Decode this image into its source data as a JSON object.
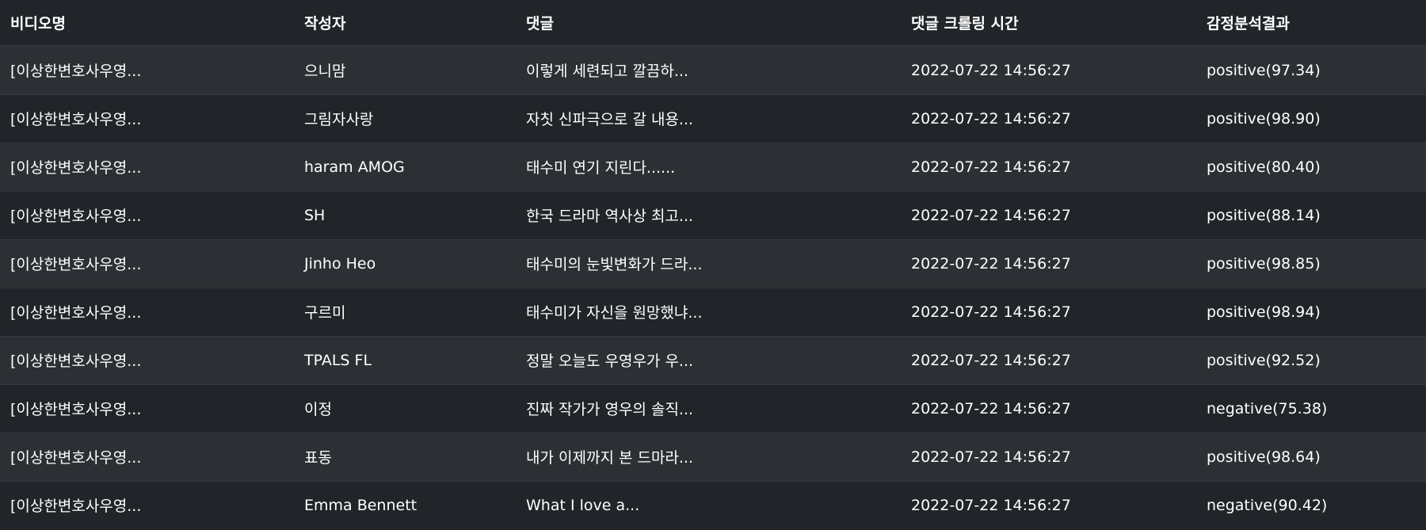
{
  "table": {
    "headers": [
      "비디오명",
      "작성자",
      "댓글",
      "댓글 크롤링 시간",
      "감정분석결과"
    ],
    "rows": [
      {
        "video": "[이상한변호사우영...",
        "author": "으니맘",
        "comment": "이렇게 세련되고 깔끔하...",
        "crawled_at": "2022-07-22 14:56:27",
        "sentiment": "positive(97.34)"
      },
      {
        "video": "[이상한변호사우영...",
        "author": "그림자사랑",
        "comment": "자칫 신파극으로 갈 내용...",
        "crawled_at": "2022-07-22 14:56:27",
        "sentiment": "positive(98.90)"
      },
      {
        "video": "[이상한변호사우영...",
        "author": "haram AMOG",
        "comment": "태수미 연기 지린다......",
        "crawled_at": "2022-07-22 14:56:27",
        "sentiment": "positive(80.40)"
      },
      {
        "video": "[이상한변호사우영...",
        "author": "SH",
        "comment": "한국 드라마 역사상 최고...",
        "crawled_at": "2022-07-22 14:56:27",
        "sentiment": "positive(88.14)"
      },
      {
        "video": "[이상한변호사우영...",
        "author": "Jinho Heo",
        "comment": "태수미의 눈빛변화가 드라...",
        "crawled_at": "2022-07-22 14:56:27",
        "sentiment": "positive(98.85)"
      },
      {
        "video": "[이상한변호사우영...",
        "author": "구르미",
        "comment": "태수미가 자신을 원망했냐...",
        "crawled_at": "2022-07-22 14:56:27",
        "sentiment": "positive(98.94)"
      },
      {
        "video": "[이상한변호사우영...",
        "author": "TPALS FL",
        "comment": "정말 오늘도 우영우가 우...",
        "crawled_at": "2022-07-22 14:56:27",
        "sentiment": "positive(92.52)"
      },
      {
        "video": "[이상한변호사우영...",
        "author": "이정",
        "comment": "진짜 작가가 영우의 솔직...",
        "crawled_at": "2022-07-22 14:56:27",
        "sentiment": "negative(75.38)"
      },
      {
        "video": "[이상한변호사우영...",
        "author": "표동",
        "comment": "내가 이제까지 본 드마라...",
        "crawled_at": "2022-07-22 14:56:27",
        "sentiment": "positive(98.64)"
      },
      {
        "video": "[이상한변호사우영...",
        "author": "Emma Bennett",
        "comment": "What I love a...",
        "crawled_at": "2022-07-22 14:56:27",
        "sentiment": "negative(90.42)"
      }
    ]
  }
}
